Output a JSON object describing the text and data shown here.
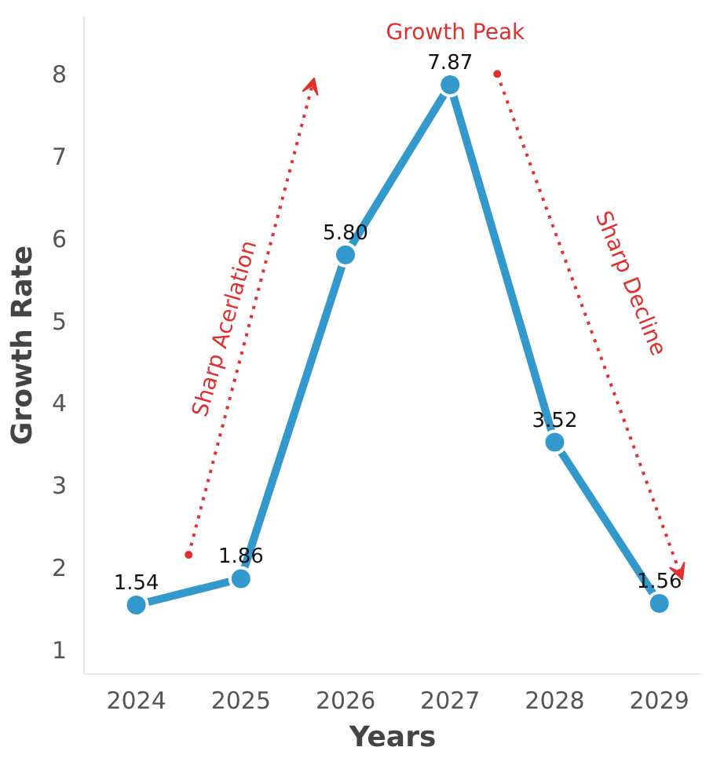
{
  "chart_data": {
    "type": "line",
    "xlabel": "Years",
    "ylabel": "Growth Rate",
    "x": [
      2024,
      2025,
      2026,
      2027,
      2028,
      2029
    ],
    "series": [
      {
        "color": "#3399cc",
        "values": [
          1.54,
          1.86,
          5.8,
          7.87,
          3.52,
          1.56
        ],
        "value_labels": [
          "1.54",
          "1.86",
          "5.80",
          "7.87",
          "3.52",
          "1.56"
        ]
      }
    ],
    "xlim": [
      2023.5,
      2029.4
    ],
    "ylim": [
      0.7,
      8.7
    ],
    "xticks": [
      2024,
      2025,
      2026,
      2027,
      2028,
      2029
    ],
    "yticks": [
      1,
      2,
      3,
      4,
      5,
      6,
      7,
      8
    ],
    "marker": "circle",
    "annotations": [
      "Growth Peak",
      "Sharp Acerlation",
      "Sharp Decline"
    ]
  }
}
